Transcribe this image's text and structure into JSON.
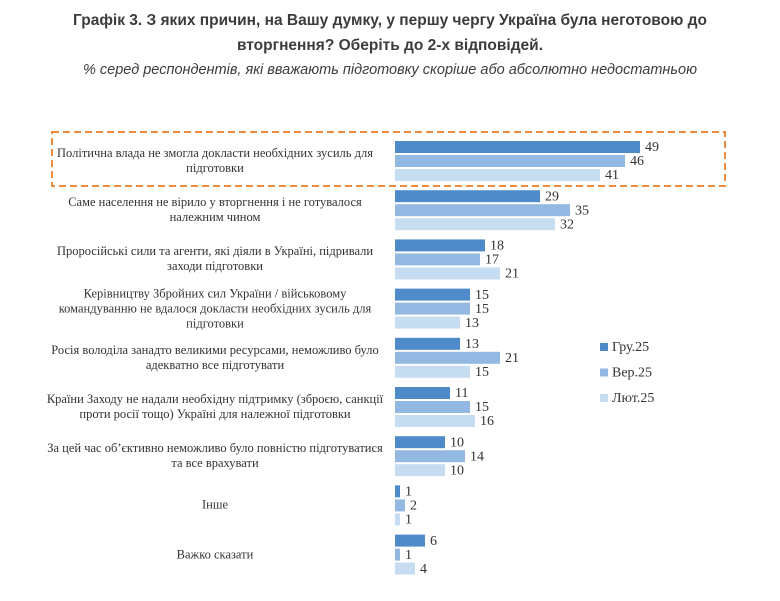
{
  "chart_data": {
    "type": "bar",
    "orientation": "horizontal",
    "title": "Графік 3. З яких причин, на Вашу думку, у першу чергу Україна була неготовою до вторгнення? Оберіть до 2-х відповідей.",
    "subtitle": "% серед респондентів, які вважають підготовку скоріше або абсолютно недостатньою",
    "categories": [
      "Політична влада не змогла докласти необхідних зусиль для підготовки",
      "Саме населення не вірило у вторгнення і не готувалося належним чином",
      "Проросійські сили та агенти, які діяли в Україні, підривали заходи підготовки",
      "Керівництву Збройних сил України / військовому командуванню не вдалося докласти необхідних зусиль для підготовки",
      "Росія володіла занадто великими ресурсами, неможливо було адекватно все підготувати",
      "Країни Заходу не надали необхідну підтримку (зброєю, санкції проти росії тощо) Україні для належної підготовки",
      "За цей час об’єктивно неможливо було повністю підготуватися та все врахувати",
      "Інше",
      "Важко сказати"
    ],
    "series": [
      {
        "name": "Гру.25",
        "color": "#4f8bcb",
        "values": [
          49,
          29,
          18,
          15,
          13,
          11,
          10,
          1,
          6
        ]
      },
      {
        "name": "Вер.25",
        "color": "#93b9e2",
        "values": [
          46,
          35,
          17,
          15,
          21,
          15,
          14,
          2,
          1
        ]
      },
      {
        "name": "Лют.25",
        "color": "#c6dcf1",
        "values": [
          41,
          32,
          21,
          13,
          15,
          16,
          10,
          1,
          4
        ]
      }
    ],
    "legend": "right"
  }
}
